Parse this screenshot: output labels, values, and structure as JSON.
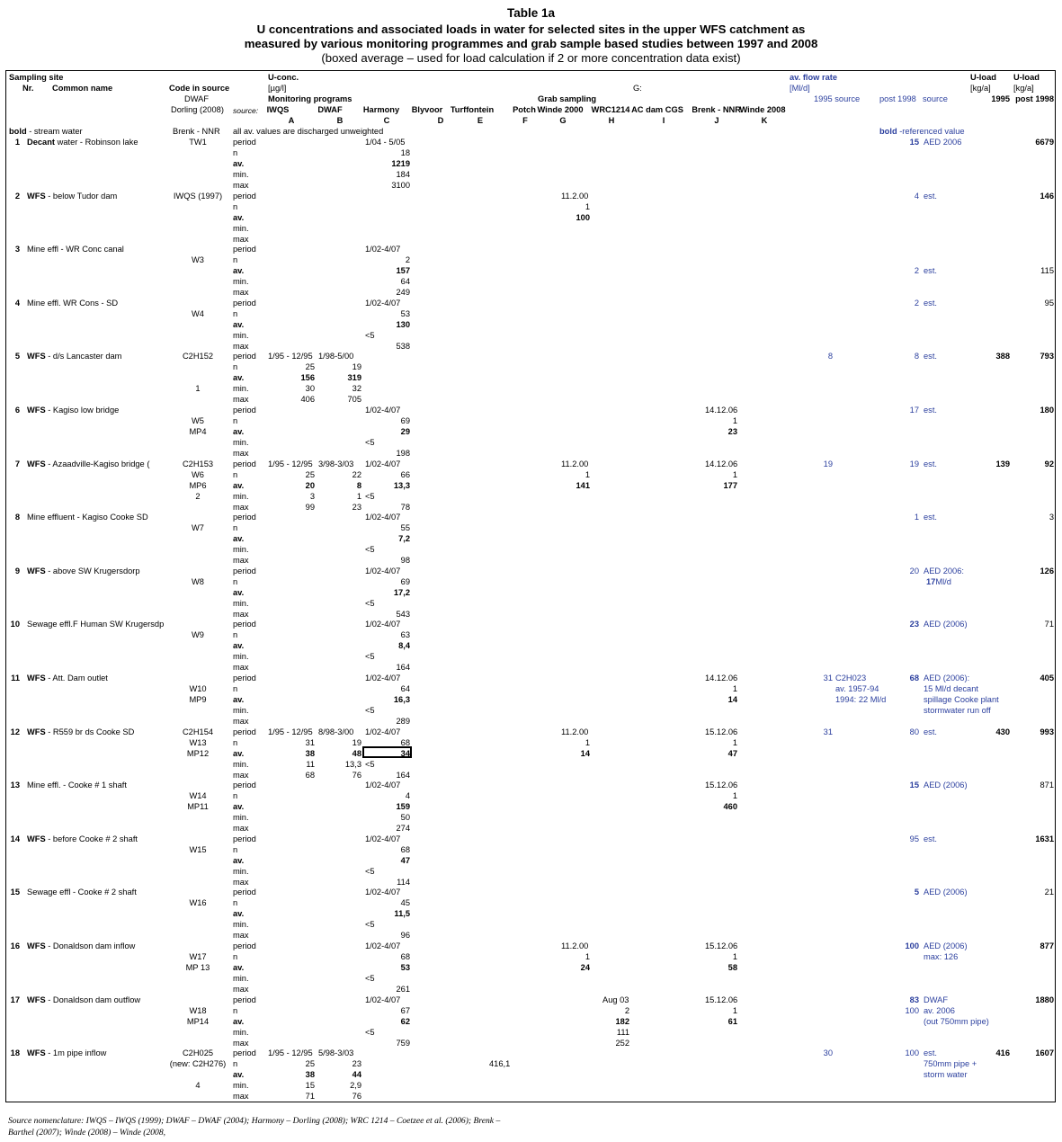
{
  "title": {
    "table_no": "Table 1a",
    "line1": "U concentrations and associated loads in water for selected sites in the upper WFS catchment as",
    "line2": "measured by various monitoring programmes and grab sample based studies between 1997 and 2008",
    "line3": "(boxed average – used for load calculation if 2 or more concentration data exist)"
  },
  "header": {
    "sampling_site": "Sampling site",
    "nr": "Nr.",
    "common_name": "Common name",
    "code_in_source": "Code in source",
    "dwaf": "DWAF",
    "dorling": "Dorling (2008)",
    "brenk": "Brenk - NNR",
    "source_label": "source:",
    "u_conc": "U-conc.",
    "ugl": "[µg/l]",
    "monitoring_programs": "Monitoring programs",
    "grab_sampling": "Grab sampling",
    "g_label": "G:",
    "all_av": "all av. values are discharged unweighted",
    "bold_stream": "bold - stream water",
    "av_flow": "av. flow rate",
    "mld": "[Ml/d]",
    "flow_1995": "1995 source",
    "flow_post1998": "post 1998",
    "flow_source": "source",
    "bold_ref": "bold -referenced value",
    "uload1": "U-load",
    "uload2": "U-load",
    "kga1": "[kg/a]",
    "kga2": "[kg/a]",
    "y1995": "1995",
    "post1998": "post 1998",
    "columns": [
      {
        "name": "IWQS",
        "letter": "A"
      },
      {
        "name": "DWAF",
        "letter": "B"
      },
      {
        "name": "Harmony",
        "letter": "C"
      },
      {
        "name": "Blyvoor",
        "letter": "D"
      },
      {
        "name": "Turffontein",
        "letter": "E"
      },
      {
        "name": "Potch",
        "letter": "F"
      },
      {
        "name": "Winde 2000",
        "letter": "G"
      },
      {
        "name": "WRC1214",
        "letter": "H"
      },
      {
        "name": "AC dam CGS",
        "letter": "I"
      },
      {
        "name": "Brenk - NNR",
        "letter": "J"
      },
      {
        "name": "Winde 2008",
        "letter": "K"
      }
    ]
  },
  "sites": [
    {
      "nr": "1",
      "bold": "Decant",
      "name": " water - Robinson lake",
      "codes": [
        "TW1",
        "",
        "",
        ""
      ],
      "A": [
        "",
        "",
        "",
        "",
        ""
      ],
      "B": [
        "",
        "",
        "",
        "",
        ""
      ],
      "C": [
        "1/04 - 5/05",
        "18",
        "1219",
        "184",
        "3100"
      ],
      "G": [
        "",
        "",
        "",
        "",
        ""
      ],
      "H": [
        "",
        "",
        "",
        "",
        ""
      ],
      "J": [
        "",
        "",
        "",
        "",
        ""
      ],
      "flow1995": "",
      "flowpost": "15",
      "flowpost_bold": true,
      "source": [
        "AED 2006"
      ],
      "load1995": "",
      "loadpost": "6679",
      "loadpost_bold": true
    },
    {
      "nr": "2",
      "bold": "WFS",
      "name": " - below Tudor dam",
      "codes": [
        "IWQS (1997)",
        "",
        "",
        ""
      ],
      "A": [
        "",
        "",
        "",
        "",
        ""
      ],
      "B": [
        "",
        "",
        "",
        "",
        ""
      ],
      "C": [
        "",
        "",
        "",
        "",
        ""
      ],
      "G": [
        "11.2.00",
        "1",
        "100",
        "",
        ""
      ],
      "H": [
        "",
        "",
        "",
        "",
        ""
      ],
      "J": [
        "",
        "",
        "",
        "",
        ""
      ],
      "flow1995": "",
      "flowpost": "4",
      "flowpost_bold": false,
      "source": [
        "est."
      ],
      "load1995": "",
      "loadpost": "146",
      "loadpost_bold": true
    },
    {
      "nr": "3",
      "bold": "",
      "name": "Mine effl - WR Conc canal",
      "codes": [
        "",
        "W3",
        "",
        ""
      ],
      "A": [
        "",
        "",
        "",
        "",
        ""
      ],
      "B": [
        "",
        "",
        "",
        "",
        ""
      ],
      "C": [
        "1/02-4/07",
        "2",
        "157",
        "64",
        "249"
      ],
      "G": [
        "",
        "",
        "",
        "",
        ""
      ],
      "H": [
        "",
        "",
        "",
        "",
        ""
      ],
      "J": [
        "",
        "",
        "",
        "",
        ""
      ],
      "flow1995": "",
      "flowpost": "2",
      "flowpost_bold": false,
      "source": [
        "",
        "",
        "est."
      ],
      "load1995": "",
      "loadpost": "115",
      "loadpost_bold": false,
      "src_row": 2
    },
    {
      "nr": "4",
      "bold": "",
      "name": "Mine effl. WR Cons - SD",
      "codes": [
        "",
        "W4",
        "",
        ""
      ],
      "A": [
        "",
        "",
        "",
        "",
        ""
      ],
      "B": [
        "",
        "",
        "",
        "",
        ""
      ],
      "C": [
        "1/02-4/07",
        "53",
        "130",
        "<5",
        "538"
      ],
      "G": [
        "",
        "",
        "",
        "",
        ""
      ],
      "H": [
        "",
        "",
        "",
        "",
        ""
      ],
      "J": [
        "",
        "",
        "",
        "",
        ""
      ],
      "flow1995": "",
      "flowpost": "2",
      "flowpost_bold": false,
      "source": [
        "est."
      ],
      "load1995": "",
      "loadpost": "95",
      "loadpost_bold": false
    },
    {
      "nr": "5",
      "bold": "WFS",
      "name": " - d/s Lancaster dam",
      "codes": [
        "C2H152",
        "",
        "",
        "1"
      ],
      "A": [
        "1/95 - 12/95",
        "25",
        "156",
        "30",
        "406"
      ],
      "B": [
        "1/98-5/00",
        "19",
        "319",
        "32",
        "705"
      ],
      "C": [
        "",
        "",
        "",
        "",
        ""
      ],
      "G": [
        "",
        "",
        "",
        "",
        ""
      ],
      "H": [
        "",
        "",
        "",
        "",
        ""
      ],
      "J": [
        "",
        "",
        "",
        "",
        ""
      ],
      "flow1995": "8",
      "flowpost": "8",
      "flowpost_bold": false,
      "source": [
        "est."
      ],
      "load1995": "388",
      "loadpost": "793",
      "loadpost_bold": true
    },
    {
      "nr": "6",
      "bold": "WFS",
      "name": " - Kagiso low bridge",
      "codes": [
        "",
        "W5",
        "MP4",
        ""
      ],
      "A": [
        "",
        "",
        "",
        "",
        ""
      ],
      "B": [
        "",
        "",
        "",
        "",
        ""
      ],
      "C": [
        "1/02-4/07",
        "69",
        "29",
        "<5",
        "198"
      ],
      "G": [
        "",
        "",
        "",
        "",
        ""
      ],
      "H": [
        "",
        "",
        "",
        "",
        ""
      ],
      "J": [
        "14.12.06",
        "1",
        "23",
        "",
        ""
      ],
      "flow1995": "",
      "flowpost": "17",
      "flowpost_bold": false,
      "source": [
        "est."
      ],
      "load1995": "",
      "loadpost": "180",
      "loadpost_bold": true
    },
    {
      "nr": "7",
      "bold": "WFS",
      "name": " - Azaadville-Kagiso bridge (",
      "codes": [
        "C2H153",
        "W6",
        "MP6",
        "2"
      ],
      "A": [
        "1/95 - 12/95",
        "25",
        "20",
        "3",
        "99"
      ],
      "B": [
        "3/98-3/03",
        "22",
        "8",
        "1",
        "23"
      ],
      "C": [
        "1/02-4/07",
        "66",
        "13,3",
        "<5",
        "78"
      ],
      "G": [
        "11.2.00",
        "1",
        "141",
        "",
        ""
      ],
      "H": [
        "",
        "",
        "",
        "",
        ""
      ],
      "J": [
        "14.12.06",
        "1",
        "177",
        "",
        ""
      ],
      "flow1995": "19",
      "flowpost": "19",
      "flowpost_bold": false,
      "source": [
        "est."
      ],
      "load1995": "139",
      "loadpost": "92",
      "loadpost_bold": true
    },
    {
      "nr": "8",
      "bold": "",
      "name": "Mine effluent - Kagiso Cooke SD",
      "codes": [
        "",
        "W7",
        "",
        ""
      ],
      "A": [
        "",
        "",
        "",
        "",
        ""
      ],
      "B": [
        "",
        "",
        "",
        "",
        ""
      ],
      "C": [
        "1/02-4/07",
        "55",
        "7,2",
        "<5",
        "98"
      ],
      "G": [
        "",
        "",
        "",
        "",
        ""
      ],
      "H": [
        "",
        "",
        "",
        "",
        ""
      ],
      "J": [
        "",
        "",
        "",
        "",
        ""
      ],
      "flow1995": "",
      "flowpost": "1",
      "flowpost_bold": false,
      "source": [
        "est."
      ],
      "load1995": "",
      "loadpost": "3",
      "loadpost_bold": false
    },
    {
      "nr": "9",
      "bold": "WFS",
      "name": " - above SW Krugersdorp",
      "codes": [
        "",
        "W8",
        "",
        ""
      ],
      "A": [
        "",
        "",
        "",
        "",
        ""
      ],
      "B": [
        "",
        "",
        "",
        "",
        ""
      ],
      "C": [
        "1/02-4/07",
        "69",
        "17,2",
        "<5",
        "543"
      ],
      "G": [
        "",
        "",
        "",
        "",
        ""
      ],
      "H": [
        "",
        "",
        "",
        "",
        ""
      ],
      "J": [
        "",
        "",
        "",
        "",
        ""
      ],
      "flow1995": "",
      "flowpost": "20",
      "flowpost_bold": false,
      "source": [
        "AED 2006:",
        "17Ml/d"
      ],
      "load1995": "",
      "loadpost": "126",
      "loadpost_bold": true
    },
    {
      "nr": "10",
      "bold": "",
      "name": "Sewage effl.F Human SW Krugersdp",
      "codes": [
        "",
        "W9",
        "",
        ""
      ],
      "A": [
        "",
        "",
        "",
        "",
        ""
      ],
      "B": [
        "",
        "",
        "",
        "",
        ""
      ],
      "C": [
        "1/02-4/07",
        "63",
        "8,4",
        "<5",
        "164"
      ],
      "G": [
        "",
        "",
        "",
        "",
        ""
      ],
      "H": [
        "",
        "",
        "",
        "",
        ""
      ],
      "J": [
        "",
        "",
        "",
        "",
        ""
      ],
      "flow1995": "",
      "flowpost": "23",
      "flowpost_bold": true,
      "source": [
        "AED (2006)"
      ],
      "load1995": "",
      "loadpost": "71",
      "loadpost_bold": false
    },
    {
      "nr": "11",
      "bold": "WFS",
      "name": " - Att. Dam outlet",
      "codes": [
        "",
        "W10",
        "MP9",
        ""
      ],
      "A": [
        "",
        "",
        "",
        "",
        ""
      ],
      "B": [
        "",
        "",
        "",
        "",
        ""
      ],
      "C": [
        "1/02-4/07",
        "64",
        "16,3",
        "<5",
        "289"
      ],
      "G": [
        "",
        "",
        "",
        "",
        ""
      ],
      "H": [
        "",
        "",
        "",
        "",
        ""
      ],
      "J": [
        "14.12.06",
        "1",
        "14",
        "",
        ""
      ],
      "flow1995": "31",
      "flow1995_src": [
        "C2H023",
        "av. 1957-94",
        "1994: 22 Ml/d"
      ],
      "flowpost": "68",
      "flowpost_bold": true,
      "source": [
        "AED (2006):",
        "15 Ml/d decant",
        "spillage Cooke plant",
        "stormwater run off"
      ],
      "load1995": "",
      "loadpost": "405",
      "loadpost_bold": true
    },
    {
      "nr": "12",
      "bold": "WFS",
      "name": " -  R559 br ds Cooke SD",
      "codes": [
        "C2H154",
        "W13",
        "MP12",
        ""
      ],
      "A": [
        "1/95 - 12/95",
        "31",
        "38",
        "11",
        "68"
      ],
      "B": [
        "8/98-3/00",
        "19",
        "48",
        "13,3",
        "76"
      ],
      "C": [
        "1/02-4/07",
        "68",
        "34",
        "<5",
        "164"
      ],
      "G": [
        "11.2.00",
        "1",
        "14",
        "",
        ""
      ],
      "H": [
        "",
        "",
        "",
        "",
        ""
      ],
      "J": [
        "15.12.06",
        "1",
        "47",
        "",
        ""
      ],
      "flow1995": "31",
      "flowpost": "80",
      "flowpost_bold": false,
      "source": [
        "est."
      ],
      "load1995": "430",
      "loadpost": "993",
      "loadpost_bold": true
    },
    {
      "nr": "13",
      "bold": "",
      "name": "Mine effl. - Cooke # 1 shaft",
      "codes": [
        "",
        "W14",
        "MP11",
        ""
      ],
      "A": [
        "",
        "",
        "",
        "",
        ""
      ],
      "B": [
        "",
        "",
        "",
        "",
        ""
      ],
      "C": [
        "1/02-4/07",
        "4",
        "159",
        "50",
        "274"
      ],
      "G": [
        "",
        "",
        "",
        "",
        ""
      ],
      "H": [
        "",
        "",
        "",
        "",
        ""
      ],
      "J": [
        "15.12.06",
        "1",
        "460",
        "",
        ""
      ],
      "flow1995": "",
      "flowpost": "15",
      "flowpost_bold": true,
      "source": [
        "AED (2006)"
      ],
      "load1995": "",
      "loadpost": "871",
      "loadpost_bold": false
    },
    {
      "nr": "14",
      "bold": "WFS",
      "name": " - before Cooke # 2 shaft",
      "codes": [
        "",
        "W15",
        "",
        ""
      ],
      "A": [
        "",
        "",
        "",
        "",
        ""
      ],
      "B": [
        "",
        "",
        "",
        "",
        ""
      ],
      "C": [
        "1/02-4/07",
        "68",
        "47",
        "<5",
        "114"
      ],
      "G": [
        "",
        "",
        "",
        "",
        ""
      ],
      "H": [
        "",
        "",
        "",
        "",
        ""
      ],
      "J": [
        "",
        "",
        "",
        "",
        ""
      ],
      "flow1995": "",
      "flowpost": "95",
      "flowpost_bold": false,
      "source": [
        "est."
      ],
      "load1995": "",
      "loadpost": "1631",
      "loadpost_bold": true
    },
    {
      "nr": "15",
      "bold": "",
      "name": "Sewage effl - Cooke # 2 shaft",
      "codes": [
        "",
        "W16",
        "",
        ""
      ],
      "A": [
        "",
        "",
        "",
        "",
        ""
      ],
      "B": [
        "",
        "",
        "",
        "",
        ""
      ],
      "C": [
        "1/02-4/07",
        "45",
        "11,5",
        "<5",
        "96"
      ],
      "G": [
        "",
        "",
        "",
        "",
        ""
      ],
      "H": [
        "",
        "",
        "",
        "",
        ""
      ],
      "J": [
        "",
        "",
        "",
        "",
        ""
      ],
      "flow1995": "",
      "flowpost": "5",
      "flowpost_bold": true,
      "source": [
        "AED (2006)"
      ],
      "load1995": "",
      "loadpost": "21",
      "loadpost_bold": false
    },
    {
      "nr": "16",
      "bold": "WFS",
      "name": " - Donaldson dam inflow",
      "codes": [
        "",
        "W17",
        "MP 13",
        ""
      ],
      "A": [
        "",
        "",
        "",
        "",
        ""
      ],
      "B": [
        "",
        "",
        "",
        "",
        ""
      ],
      "C": [
        "1/02-4/07",
        "68",
        "53",
        "<5",
        "261"
      ],
      "G": [
        "11.2.00",
        "1",
        "24",
        "",
        ""
      ],
      "H": [
        "",
        "",
        "",
        "",
        ""
      ],
      "J": [
        "15.12.06",
        "1",
        "58",
        "",
        ""
      ],
      "flow1995": "",
      "flowpost": "100",
      "flowpost_bold": true,
      "source": [
        "AED (2006)",
        "max: 126"
      ],
      "load1995": "",
      "loadpost": "877",
      "loadpost_bold": true
    },
    {
      "nr": "17",
      "bold": "WFS",
      "name": " - Donaldson dam outflow",
      "codes": [
        "",
        "W18",
        "MP14",
        ""
      ],
      "A": [
        "",
        "",
        "",
        "",
        ""
      ],
      "B": [
        "",
        "",
        "",
        "",
        ""
      ],
      "C": [
        "1/02-4/07",
        "67",
        "62",
        "<5",
        "759"
      ],
      "G": [
        "",
        "",
        "",
        "",
        ""
      ],
      "H": [
        "Aug 03",
        "2",
        "182",
        "111",
        "252"
      ],
      "J": [
        "15.12.06",
        "1",
        "61",
        "",
        ""
      ],
      "flow1995": "",
      "flowpost": "83",
      "flowpost_bold": true,
      "flowpost2": "100",
      "source": [
        "DWAF",
        "av. 2006",
        "(out 750mm pipe)"
      ],
      "load1995": "",
      "loadpost": "1880",
      "loadpost_bold": true
    },
    {
      "nr": "18",
      "bold": "WFS",
      "name": " - 1m pipe inflow",
      "codes": [
        "C2H025",
        "(new: C2H276)",
        "",
        "4"
      ],
      "A": [
        "1/95 - 12/95",
        "25",
        "38",
        "15",
        "71"
      ],
      "B": [
        "5/98-3/03",
        "23",
        "44",
        "2,9",
        "76"
      ],
      "C": [
        "",
        "",
        "",
        "",
        ""
      ],
      "E": "416,1",
      "G": [
        "",
        "",
        "",
        "",
        ""
      ],
      "H": [
        "",
        "",
        "",
        "",
        ""
      ],
      "J": [
        "",
        "",
        "",
        "",
        ""
      ],
      "flow1995": "30",
      "flowpost": "100",
      "flowpost_bold": false,
      "source": [
        "est.",
        "750mm pipe +",
        "storm water"
      ],
      "load1995": "416",
      "loadpost": "1607",
      "loadpost_bold": true
    }
  ],
  "row_labels": [
    "period",
    "n",
    "av.",
    "min.",
    "max"
  ],
  "footnote": {
    "line1": "Source nomenclature: IWQS – IWQS (1999); DWAF – DWAF (2004); Harmony –  Dorling (2008); WRC 1214 – Coetzee et al. (2006); Brenk –",
    "line2": "Barthel (2007); Winde (2008) – Winde (2008,"
  },
  "colors": {
    "blue": "#2b3f9e"
  }
}
